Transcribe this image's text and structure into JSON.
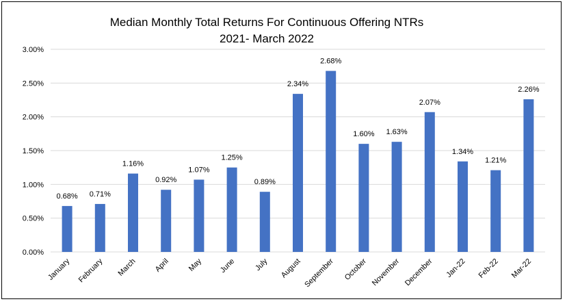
{
  "chart_data": {
    "type": "bar",
    "title": "Median Monthly Total Returns For Continuous Offering NTRs",
    "subtitle": "2021- March 2022",
    "xlabel": "",
    "ylabel": "",
    "categories": [
      "January",
      "February",
      "March",
      "April",
      "May",
      "June",
      "July",
      "August",
      "September",
      "October",
      "November",
      "December",
      "Jan-22",
      "Feb-22",
      "Mar-22"
    ],
    "values": [
      0.68,
      0.71,
      1.16,
      0.92,
      1.07,
      1.25,
      0.89,
      2.34,
      2.68,
      1.6,
      1.63,
      2.07,
      1.34,
      1.21,
      2.26
    ],
    "data_labels": [
      "0.68%",
      "0.71%",
      "1.16%",
      "0.92%",
      "1.07%",
      "1.25%",
      "0.89%",
      "2.34%",
      "2.68%",
      "1.60%",
      "1.63%",
      "2.07%",
      "1.34%",
      "1.21%",
      "2.26%"
    ],
    "ylim": [
      0,
      3
    ],
    "yticks": [
      0,
      0.5,
      1.0,
      1.5,
      2.0,
      2.5,
      3.0
    ],
    "ytick_labels": [
      "0.00%",
      "0.50%",
      "1.00%",
      "1.50%",
      "2.00%",
      "2.50%",
      "3.00%"
    ],
    "grid": "horizontal",
    "legend": "none",
    "bar_color": "#4472C4",
    "grid_color": "#D9D9D9"
  }
}
